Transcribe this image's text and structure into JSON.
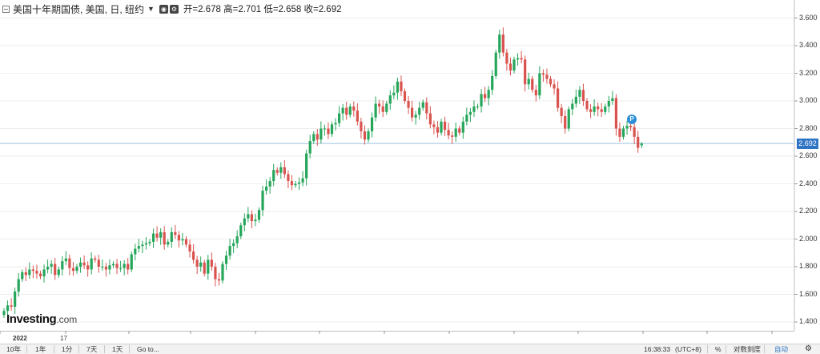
{
  "header": {
    "title": "美国十年期国债, 美国, 日, 纽约",
    "dropdown_icon": "caret-down-icon",
    "eye_icon": "eye-icon",
    "ohlc": "开=2.678  高=2.701  低=2.658  收=2.692"
  },
  "logo": {
    "brand": "Investing",
    "suffix": ".com"
  },
  "marker": {
    "label": "P"
  },
  "last_price": "2.692",
  "x_labels": [
    "2022",
    "17"
  ],
  "bottom_bar": {
    "ranges": [
      "10年",
      "1年",
      "1分",
      "7天",
      "1天"
    ],
    "goto": "Go to...",
    "time": "16:38:33",
    "timezone": "(UTC+8)",
    "percent": "%",
    "log_scale": "对数刻度",
    "auto": "自动",
    "settings_icon": "gear-icon"
  },
  "colors": {
    "up": "#26a65b",
    "down": "#d9534f",
    "price_line": "#9cc4e0",
    "grid": "#eeeeee",
    "marker": "#2c8fd8",
    "last_price_bg": "#2e74c4"
  },
  "chart_data": {
    "type": "candlestick",
    "title": "美国十年期国债, 美国, 日, 纽约",
    "y_ticks": [
      "1.400",
      "1.600",
      "1.800",
      "2.000",
      "2.200",
      "2.400",
      "2.600",
      "2.800",
      "3.000",
      "3.200",
      "3.400",
      "3.600"
    ],
    "ylim": [
      1.35,
      3.7
    ],
    "last_value": 2.692,
    "last_ohlc": {
      "open": 2.678,
      "high": 2.701,
      "low": 2.658,
      "close": 2.692
    },
    "closes": [
      1.48,
      1.52,
      1.51,
      1.62,
      1.71,
      1.76,
      1.74,
      1.78,
      1.77,
      1.75,
      1.73,
      1.78,
      1.8,
      1.82,
      1.74,
      1.78,
      1.84,
      1.86,
      1.79,
      1.77,
      1.8,
      1.83,
      1.81,
      1.78,
      1.86,
      1.85,
      1.8,
      1.8,
      1.78,
      1.81,
      1.82,
      1.79,
      1.79,
      1.82,
      1.78,
      1.89,
      1.93,
      1.95,
      1.96,
      1.97,
      1.98,
      2.04,
      2.01,
      2.05,
      1.96,
      1.98,
      2.05,
      2.03,
      1.99,
      2.0,
      1.96,
      1.91,
      1.85,
      1.8,
      1.83,
      1.75,
      1.85,
      1.8,
      1.71,
      1.7,
      1.82,
      1.88,
      1.95,
      1.97,
      2.02,
      2.1,
      2.15,
      2.18,
      2.13,
      2.14,
      2.21,
      2.35,
      2.38,
      2.42,
      2.5,
      2.48,
      2.52,
      2.47,
      2.42,
      2.39,
      2.4,
      2.41,
      2.44,
      2.62,
      2.71,
      2.76,
      2.72,
      2.8,
      2.8,
      2.76,
      2.83,
      2.84,
      2.91,
      2.95,
      2.9,
      2.96,
      2.93,
      2.85,
      2.78,
      2.72,
      2.78,
      2.88,
      2.98,
      2.96,
      2.92,
      2.98,
      3.04,
      3.06,
      3.14,
      3.07,
      3.0,
      2.95,
      2.88,
      2.9,
      2.95,
      2.99,
      2.91,
      2.83,
      2.81,
      2.77,
      2.85,
      2.79,
      2.75,
      2.74,
      2.8,
      2.77,
      2.85,
      2.9,
      2.92,
      2.96,
      2.96,
      3.05,
      3.02,
      3.08,
      3.18,
      3.35,
      3.48,
      3.35,
      3.27,
      3.22,
      3.3,
      3.31,
      3.3,
      3.12,
      3.16,
      3.08,
      3.04,
      3.2,
      3.19,
      3.16,
      3.12,
      3.09,
      2.95,
      2.89,
      2.8,
      2.94,
      2.98,
      3.03,
      3.08,
      3.0,
      2.94,
      2.92,
      2.96,
      2.94,
      2.92,
      2.96,
      3.0,
      3.02,
      2.8,
      2.74,
      2.8,
      2.82,
      2.81,
      2.74,
      2.66,
      2.692
    ]
  }
}
